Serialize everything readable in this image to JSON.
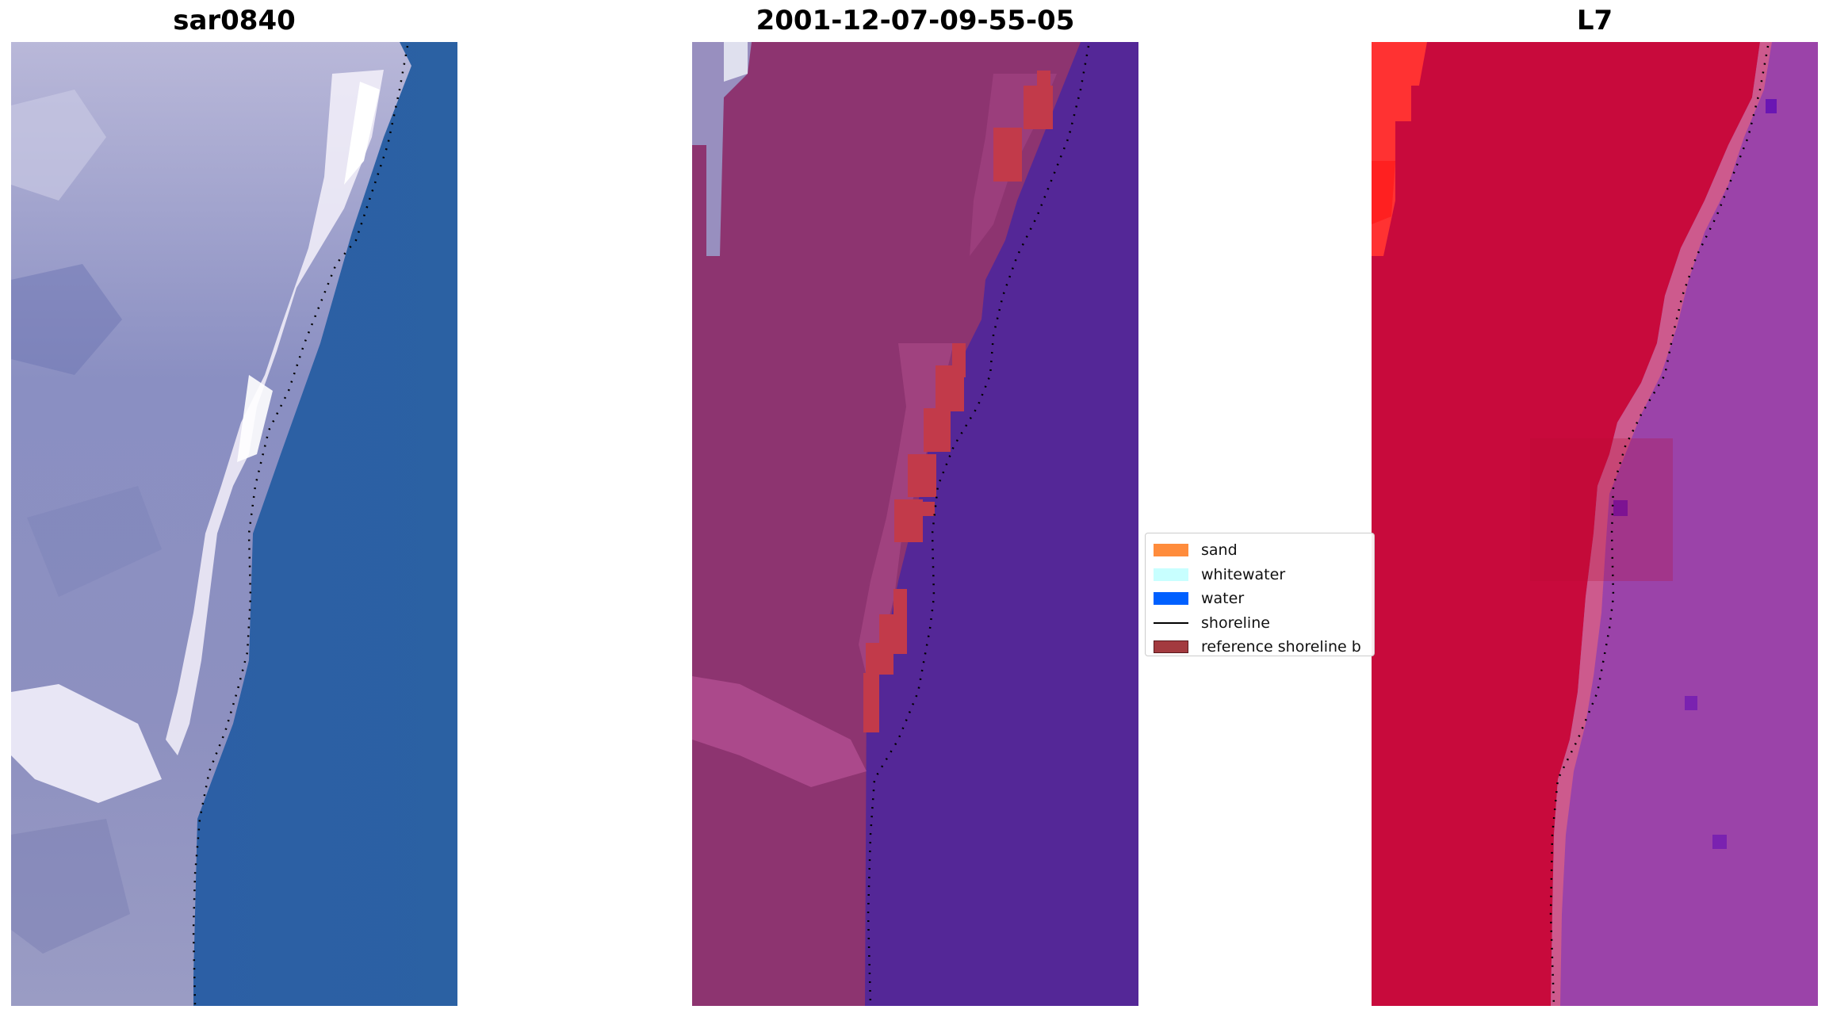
{
  "panels": [
    {
      "title": "sar0840"
    },
    {
      "title": "2001-12-07-09-55-05"
    },
    {
      "title": "L7"
    }
  ],
  "legend": {
    "items": [
      {
        "label": "sand",
        "color": "#ff8c3c",
        "kind": "patch"
      },
      {
        "label": "whitewater",
        "color": "#c8ffff",
        "kind": "patch"
      },
      {
        "label": "water",
        "color": "#0060ff",
        "kind": "patch"
      },
      {
        "label": "shoreline",
        "color": "#000000",
        "kind": "line"
      },
      {
        "label": "reference shoreline b",
        "color": "#a33a3f",
        "kind": "patch"
      }
    ]
  },
  "colors": {
    "rgb_water": "#2f62a4",
    "rgb_land": "#8e92c4",
    "rgb_whitewater": "#eeeaf6",
    "class_water": "#542797",
    "class_land": "#8d3470",
    "class_buffer": "#c23a4a",
    "nir_land": "#c80a3c",
    "nir_water": "#9b43a9",
    "nir_bright": "#ff3030"
  }
}
